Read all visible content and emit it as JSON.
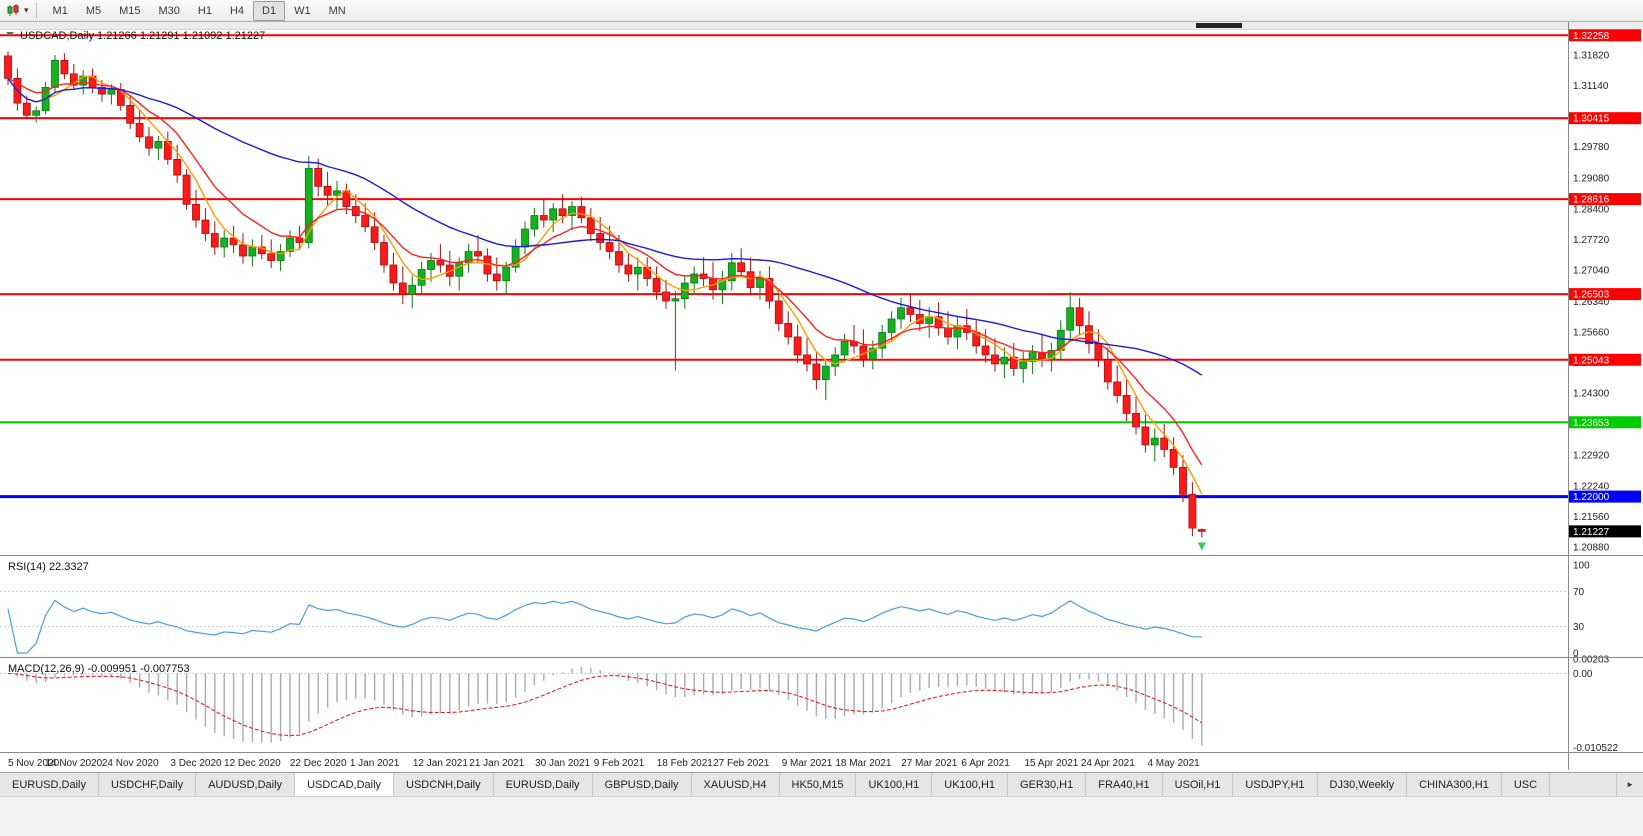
{
  "toolbar": {
    "timeframes": [
      "M1",
      "M5",
      "M15",
      "M30",
      "H1",
      "H4",
      "D1",
      "W1",
      "MN"
    ],
    "active_timeframe": "D1"
  },
  "icons": {
    "caret_down": "▾",
    "caret_right": "►"
  },
  "chart": {
    "header_text": "USDCAD,Daily 1.21266 1.21291 1.21092 1.21227",
    "symbol": "USDCAD",
    "period": "Daily",
    "open": "1.21266",
    "high": "1.21291",
    "low": "1.21092",
    "close": "1.21227",
    "rsi_header": "RSI(14) 22.3327",
    "macd_header": "MACD(12,26,9) -0.009951 -0.007753"
  },
  "chart_data": {
    "type": "candlestick",
    "symbol": "USDCAD",
    "timeframe": "Daily",
    "candles": [
      [
        1.318,
        1.319,
        1.3115,
        1.313
      ],
      [
        1.313,
        1.3152,
        1.3058,
        1.3075
      ],
      [
        1.3075,
        1.3092,
        1.304,
        1.3048
      ],
      [
        1.3048,
        1.3068,
        1.3032,
        1.3058
      ],
      [
        1.3058,
        1.3122,
        1.305,
        1.311
      ],
      [
        1.311,
        1.3182,
        1.31,
        1.317
      ],
      [
        1.317,
        1.3186,
        1.3128,
        1.314
      ],
      [
        1.314,
        1.3162,
        1.3104,
        1.3115
      ],
      [
        1.3115,
        1.3148,
        1.3094,
        1.3135
      ],
      [
        1.3135,
        1.3152,
        1.3098,
        1.311
      ],
      [
        1.311,
        1.3126,
        1.3078,
        1.3095
      ],
      [
        1.3095,
        1.3117,
        1.3072,
        1.3105
      ],
      [
        1.3105,
        1.312,
        1.3058,
        1.307
      ],
      [
        1.307,
        1.3092,
        1.3018,
        1.303
      ],
      [
        1.303,
        1.3062,
        1.2988,
        1.3
      ],
      [
        1.3,
        1.3022,
        1.2958,
        1.2975
      ],
      [
        1.2975,
        1.3002,
        1.2948,
        1.299
      ],
      [
        1.299,
        1.3012,
        1.2938,
        1.295
      ],
      [
        1.295,
        1.2982,
        1.2898,
        1.2915
      ],
      [
        1.2915,
        1.2928,
        1.2838,
        1.285
      ],
      [
        1.285,
        1.2882,
        1.2798,
        1.2815
      ],
      [
        1.2815,
        1.2842,
        1.2768,
        1.2785
      ],
      [
        1.2785,
        1.2812,
        1.2738,
        1.2755
      ],
      [
        1.2755,
        1.2792,
        1.2732,
        1.2775
      ],
      [
        1.2775,
        1.2802,
        1.2742,
        1.276
      ],
      [
        1.276,
        1.2786,
        1.2718,
        1.2735
      ],
      [
        1.2735,
        1.2772,
        1.2712,
        1.2755
      ],
      [
        1.2755,
        1.2782,
        1.2728,
        1.274
      ],
      [
        1.274,
        1.2772,
        1.2708,
        1.2725
      ],
      [
        1.2725,
        1.2762,
        1.2702,
        1.2745
      ],
      [
        1.2745,
        1.2792,
        1.2733,
        1.2775
      ],
      [
        1.2775,
        1.2802,
        1.2748,
        1.2765
      ],
      [
        1.2765,
        1.2958,
        1.2752,
        1.293
      ],
      [
        1.293,
        1.2952,
        1.2868,
        1.289
      ],
      [
        1.289,
        1.2922,
        1.2848,
        1.287
      ],
      [
        1.287,
        1.2902,
        1.2838,
        1.288
      ],
      [
        1.288,
        1.2896,
        1.2828,
        1.2845
      ],
      [
        1.2845,
        1.2872,
        1.2808,
        1.2825
      ],
      [
        1.2825,
        1.2852,
        1.2788,
        1.28
      ],
      [
        1.28,
        1.2832,
        1.2748,
        1.2765
      ],
      [
        1.2765,
        1.2782,
        1.2698,
        1.2715
      ],
      [
        1.2715,
        1.2742,
        1.2658,
        1.2675
      ],
      [
        1.2675,
        1.2712,
        1.2628,
        1.265
      ],
      [
        1.265,
        1.2692,
        1.2618,
        1.267
      ],
      [
        1.267,
        1.2722,
        1.2648,
        1.2705
      ],
      [
        1.2705,
        1.2742,
        1.2678,
        1.2725
      ],
      [
        1.2725,
        1.2762,
        1.2698,
        1.2715
      ],
      [
        1.2715,
        1.2747,
        1.2668,
        1.269
      ],
      [
        1.269,
        1.2732,
        1.2658,
        1.272
      ],
      [
        1.272,
        1.2762,
        1.2698,
        1.2745
      ],
      [
        1.2745,
        1.2782,
        1.2718,
        1.2735
      ],
      [
        1.2735,
        1.2752,
        1.2678,
        1.2695
      ],
      [
        1.2695,
        1.2732,
        1.2658,
        1.268
      ],
      [
        1.268,
        1.2722,
        1.2648,
        1.271
      ],
      [
        1.271,
        1.2772,
        1.2698,
        1.2755
      ],
      [
        1.2755,
        1.2812,
        1.2738,
        1.2795
      ],
      [
        1.2795,
        1.2842,
        1.2778,
        1.2825
      ],
      [
        1.2825,
        1.2862,
        1.2798,
        1.2815
      ],
      [
        1.2815,
        1.2852,
        1.2788,
        1.284
      ],
      [
        1.284,
        1.2872,
        1.2808,
        1.2825
      ],
      [
        1.2825,
        1.2857,
        1.2793,
        1.2845
      ],
      [
        1.2845,
        1.2867,
        1.2808,
        1.282
      ],
      [
        1.282,
        1.2842,
        1.2768,
        1.2785
      ],
      [
        1.2785,
        1.2822,
        1.2748,
        1.2765
      ],
      [
        1.2765,
        1.2802,
        1.2728,
        1.2745
      ],
      [
        1.2745,
        1.2782,
        1.2698,
        1.2715
      ],
      [
        1.2715,
        1.2742,
        1.2678,
        1.2695
      ],
      [
        1.2695,
        1.2732,
        1.2658,
        1.271
      ],
      [
        1.271,
        1.2732,
        1.2668,
        1.2685
      ],
      [
        1.2685,
        1.2712,
        1.2638,
        1.2655
      ],
      [
        1.2655,
        1.2682,
        1.2618,
        1.2635
      ],
      [
        1.2635,
        1.2657,
        1.248,
        1.264
      ],
      [
        1.264,
        1.2692,
        1.2618,
        1.2675
      ],
      [
        1.2675,
        1.2712,
        1.2648,
        1.2695
      ],
      [
        1.2695,
        1.2732,
        1.2668,
        1.2685
      ],
      [
        1.2685,
        1.2722,
        1.2638,
        1.266
      ],
      [
        1.266,
        1.2702,
        1.2628,
        1.268
      ],
      [
        1.268,
        1.2742,
        1.2658,
        1.272
      ],
      [
        1.272,
        1.2752,
        1.2688,
        1.27
      ],
      [
        1.27,
        1.2732,
        1.2648,
        1.2665
      ],
      [
        1.2665,
        1.2702,
        1.2638,
        1.2685
      ],
      [
        1.2685,
        1.2712,
        1.2618,
        1.2635
      ],
      [
        1.2635,
        1.2662,
        1.2568,
        1.2585
      ],
      [
        1.2585,
        1.2612,
        1.2538,
        1.2555
      ],
      [
        1.2555,
        1.2582,
        1.2498,
        1.2515
      ],
      [
        1.2515,
        1.2552,
        1.2478,
        1.2495
      ],
      [
        1.2495,
        1.2522,
        1.2438,
        1.246
      ],
      [
        1.246,
        1.2502,
        1.2415,
        1.249
      ],
      [
        1.249,
        1.2532,
        1.2468,
        1.2515
      ],
      [
        1.2515,
        1.2562,
        1.2498,
        1.2545
      ],
      [
        1.2545,
        1.2582,
        1.2518,
        1.2535
      ],
      [
        1.2535,
        1.2572,
        1.2488,
        1.2505
      ],
      [
        1.2505,
        1.2547,
        1.2483,
        1.253
      ],
      [
        1.253,
        1.2582,
        1.2508,
        1.2565
      ],
      [
        1.2565,
        1.2612,
        1.2543,
        1.2595
      ],
      [
        1.2595,
        1.2642,
        1.2573,
        1.262
      ],
      [
        1.262,
        1.2652,
        1.2588,
        1.2605
      ],
      [
        1.2605,
        1.2637,
        1.2568,
        1.2585
      ],
      [
        1.2585,
        1.2622,
        1.2553,
        1.26
      ],
      [
        1.26,
        1.2632,
        1.2558,
        1.2575
      ],
      [
        1.2575,
        1.2612,
        1.2538,
        1.2555
      ],
      [
        1.2555,
        1.2602,
        1.2528,
        1.258
      ],
      [
        1.258,
        1.2617,
        1.2548,
        1.2565
      ],
      [
        1.2565,
        1.2592,
        1.2518,
        1.2535
      ],
      [
        1.2535,
        1.2572,
        1.2498,
        1.2515
      ],
      [
        1.2515,
        1.2552,
        1.2478,
        1.2495
      ],
      [
        1.2495,
        1.2532,
        1.2463,
        1.251
      ],
      [
        1.251,
        1.2542,
        1.2468,
        1.2485
      ],
      [
        1.2485,
        1.2522,
        1.2453,
        1.25
      ],
      [
        1.25,
        1.2537,
        1.2473,
        1.252
      ],
      [
        1.252,
        1.2562,
        1.2488,
        1.2505
      ],
      [
        1.2505,
        1.2542,
        1.2478,
        1.2525
      ],
      [
        1.2525,
        1.2592,
        1.2503,
        1.257
      ],
      [
        1.257,
        1.2654,
        1.2548,
        1.262
      ],
      [
        1.262,
        1.2642,
        1.2558,
        1.258
      ],
      [
        1.258,
        1.2612,
        1.2518,
        1.254
      ],
      [
        1.254,
        1.2572,
        1.2488,
        1.2505
      ],
      [
        1.2505,
        1.2532,
        1.2438,
        1.2455
      ],
      [
        1.2455,
        1.2492,
        1.2408,
        1.2425
      ],
      [
        1.2425,
        1.2462,
        1.2368,
        1.2385
      ],
      [
        1.2385,
        1.2422,
        1.2338,
        1.2355
      ],
      [
        1.2355,
        1.2382,
        1.2298,
        1.2315
      ],
      [
        1.2315,
        1.2352,
        1.2278,
        1.233
      ],
      [
        1.233,
        1.2362,
        1.2288,
        1.2305
      ],
      [
        1.2305,
        1.2332,
        1.2248,
        1.2265
      ],
      [
        1.2265,
        1.2292,
        1.2188,
        1.2205
      ],
      [
        1.2205,
        1.2232,
        1.2112,
        1.213
      ],
      [
        1.21266,
        1.21291,
        1.21092,
        1.21227
      ]
    ],
    "y_axis_ticks": [
      "1.31820",
      "1.31140",
      "1.30460",
      "1.29780",
      "1.29080",
      "1.28400",
      "1.27720",
      "1.27040",
      "1.26340",
      "1.25660",
      "1.24980",
      "1.24300",
      "1.23600",
      "1.22920",
      "1.22240",
      "1.21560",
      "1.20880"
    ],
    "hlines": [
      {
        "price": 1.32258,
        "label": "1.32258",
        "color": "#ff0000",
        "width": 2
      },
      {
        "price": 1.30415,
        "label": "1.30415",
        "color": "#ff0000",
        "width": 2
      },
      {
        "price": 1.28616,
        "label": "1.28616",
        "color": "#ff0000",
        "width": 2
      },
      {
        "price": 1.26503,
        "label": "1.26503",
        "color": "#ff0000",
        "width": 2
      },
      {
        "price": 1.25043,
        "label": "1.25043",
        "color": "#ff0000",
        "width": 2
      },
      {
        "price": 1.23653,
        "label": "1.23653",
        "color": "#00cc00",
        "width": 2
      },
      {
        "price": 1.22,
        "label": "1.22000",
        "color": "#0000ff",
        "width": 3
      }
    ],
    "current_price": {
      "price": 1.21227,
      "label": "1.21227",
      "color": "#000000"
    },
    "moving_averages": [
      {
        "type": "sma",
        "period": 5,
        "color": "#ff9c00"
      },
      {
        "type": "ema",
        "period": 10,
        "color": "#ff2020"
      },
      {
        "type": "sma",
        "period": 34,
        "color": "#1a1ae0"
      }
    ],
    "rsi": {
      "label": "RSI(14)",
      "value": "22.3327",
      "period": 14,
      "color": "#4a9fdc",
      "levels": [
        "100",
        "70",
        "30",
        "0"
      ],
      "level_values": [
        100,
        70,
        30,
        0
      ],
      "dashed_levels": [
        70,
        30
      ]
    },
    "macd": {
      "label": "MACD(12,26,9)",
      "value": "-0.009951",
      "signal_value": "-0.007753",
      "fast": 12,
      "slow": 26,
      "signal": 9,
      "hist_color": "#a9a9b6",
      "signal_color": "#e82222",
      "max": 0.00203,
      "min": -0.010522,
      "ticks": [
        {
          "label": "0.00203",
          "value": 0.00203
        },
        {
          "label": "0.00",
          "value": 0
        },
        {
          "label": "-0.010522",
          "value": -0.010522
        }
      ]
    },
    "date_labels": [
      "5 Nov 2020",
      "14 Nov 2020",
      "24 Nov 2020",
      "3 Dec 2020",
      "12 Dec 2020",
      "22 Dec 2020",
      "1 Jan 2021",
      "12 Jan 2021",
      "21 Jan 2021",
      "30 Jan 2021",
      "9 Feb 2021",
      "18 Feb 2021",
      "27 Feb 2021",
      "9 Mar 2021",
      "18 Mar 2021",
      "27 Mar 2021",
      "6 Apr 2021",
      "15 Apr 2021",
      "24 Apr 2021",
      "4 May 2021"
    ],
    "date_label_indices": [
      0,
      7,
      13,
      20,
      26,
      33,
      39,
      46,
      52,
      59,
      65,
      72,
      78,
      85,
      91,
      98,
      104,
      111,
      117,
      124
    ]
  },
  "tabs": {
    "items": [
      "EURUSD,Daily",
      "USDCHF,Daily",
      "AUDUSD,Daily",
      "USDCAD,Daily",
      "USDCNH,Daily",
      "EURUSD,Daily",
      "GBPUSD,Daily",
      "XAUUSD,H4",
      "HK50,M15",
      "UK100,H1",
      "UK100,H1",
      "GER30,H1",
      "FRA40,H1",
      "USOil,H1",
      "USDJPY,H1",
      "DJ30,Weekly",
      "CHINA300,H1",
      "USC"
    ],
    "active_index": 3
  }
}
